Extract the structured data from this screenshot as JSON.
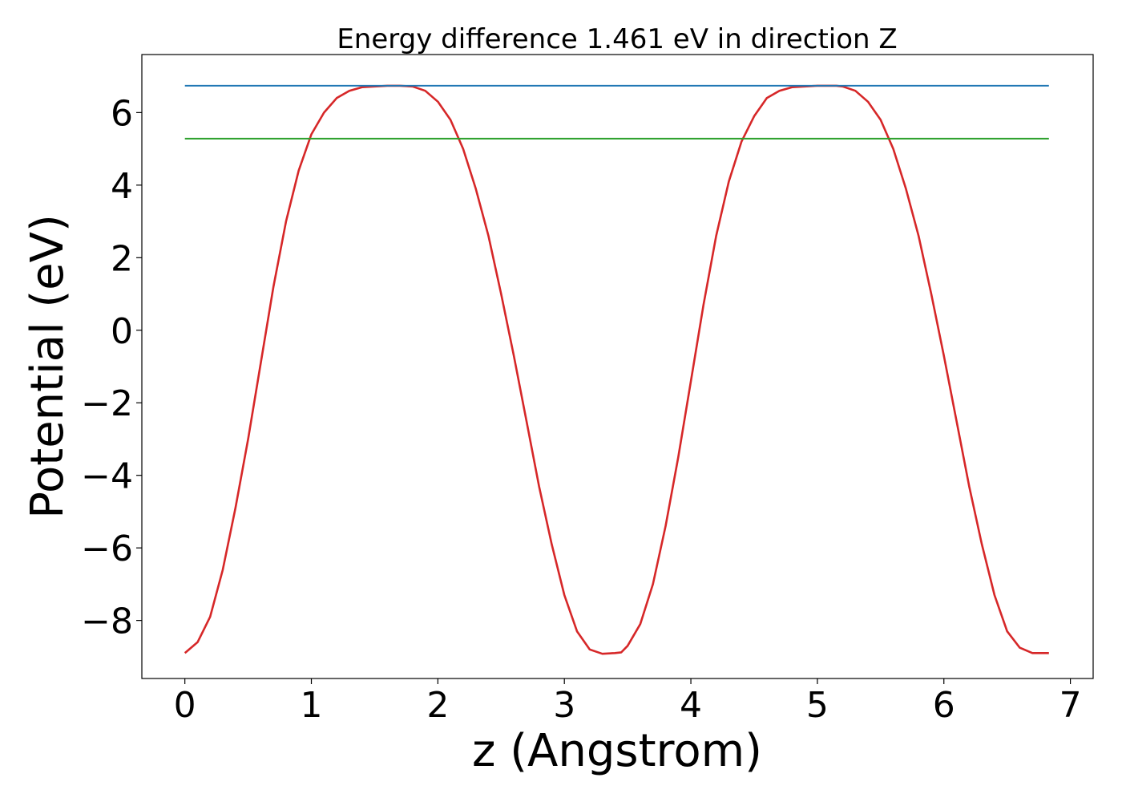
{
  "chart_data": {
    "type": "line",
    "title": "Energy difference 1.461 eV in direction Z",
    "xlabel": "z (Angstrom)",
    "ylabel": "Potential (eV)",
    "xlim": [
      -0.34,
      7.18
    ],
    "ylim": [
      -9.6,
      7.6
    ],
    "xticks": [
      0,
      1,
      2,
      3,
      4,
      5,
      6,
      7
    ],
    "yticks": [
      -8,
      -6,
      -4,
      -2,
      0,
      2,
      4,
      6
    ],
    "xtick_labels": [
      "0",
      "1",
      "2",
      "3",
      "4",
      "5",
      "6",
      "7"
    ],
    "ytick_labels": [
      "−8",
      "−6",
      "−4",
      "−2",
      "0",
      "2",
      "4",
      "6"
    ],
    "grid": false,
    "legend": "none",
    "series": [
      {
        "color": "#d62728",
        "x": [
          0.0,
          0.1,
          0.2,
          0.3,
          0.4,
          0.5,
          0.6,
          0.7,
          0.8,
          0.9,
          1.0,
          1.1,
          1.2,
          1.3,
          1.4,
          1.5,
          1.6,
          1.7,
          1.8,
          1.9,
          2.0,
          2.1,
          2.2,
          2.3,
          2.4,
          2.5,
          2.6,
          2.7,
          2.8,
          2.9,
          3.0,
          3.1,
          3.2,
          3.3,
          3.4,
          3.45,
          3.5,
          3.6,
          3.7,
          3.8,
          3.9,
          4.0,
          4.1,
          4.2,
          4.3,
          4.4,
          4.5,
          4.6,
          4.7,
          4.8,
          4.9,
          5.0,
          5.1,
          5.15,
          5.2,
          5.3,
          5.4,
          5.5,
          5.6,
          5.7,
          5.8,
          5.9,
          6.0,
          6.1,
          6.2,
          6.3,
          6.4,
          6.5,
          6.6,
          6.7,
          6.83
        ],
        "y": [
          -8.9,
          -8.6,
          -7.9,
          -6.6,
          -4.9,
          -3.0,
          -0.9,
          1.2,
          3.0,
          4.4,
          5.4,
          6.0,
          6.4,
          6.6,
          6.7,
          6.72,
          6.74,
          6.74,
          6.72,
          6.6,
          6.3,
          5.8,
          5.0,
          3.9,
          2.6,
          1.0,
          -0.7,
          -2.5,
          -4.3,
          -5.9,
          -7.3,
          -8.3,
          -8.8,
          -8.92,
          -8.9,
          -8.88,
          -8.7,
          -8.1,
          -7.0,
          -5.4,
          -3.5,
          -1.4,
          0.7,
          2.6,
          4.1,
          5.2,
          5.9,
          6.4,
          6.6,
          6.7,
          6.72,
          6.74,
          6.74,
          6.74,
          6.72,
          6.6,
          6.3,
          5.8,
          5.0,
          3.9,
          2.6,
          1.0,
          -0.7,
          -2.5,
          -4.3,
          -5.9,
          -7.3,
          -8.3,
          -8.75,
          -8.9,
          -8.9
        ]
      },
      {
        "color": "#1f77b4",
        "x": [
          0.0,
          6.83
        ],
        "y": [
          6.74,
          6.74
        ]
      },
      {
        "color": "#2ca02c",
        "x": [
          0.0,
          6.83
        ],
        "y": [
          5.28,
          5.28
        ]
      }
    ]
  }
}
